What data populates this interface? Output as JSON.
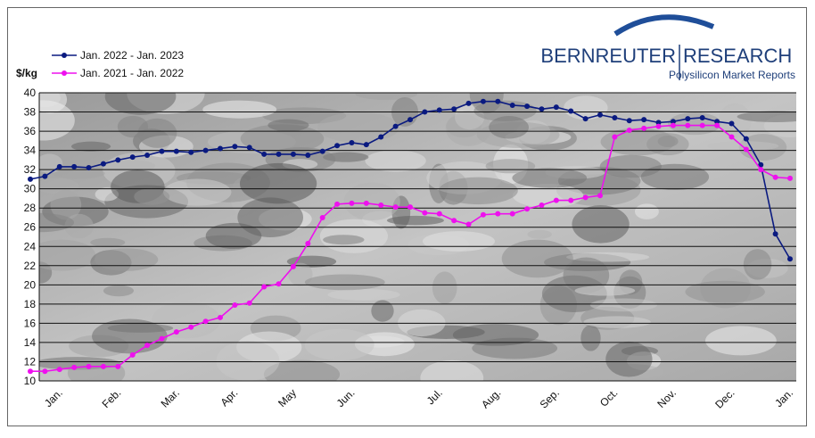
{
  "chart_data": {
    "type": "line",
    "y_label": "$/kg",
    "branding": {
      "name_left": "BERNREUTER",
      "name_right": "RESEARCH",
      "tagline": "Polysilicon Market Reports"
    },
    "categories": [
      null,
      null,
      "Jan.",
      null,
      null,
      null,
      "Feb.",
      null,
      null,
      null,
      "Mar.",
      null,
      null,
      null,
      "Apr.",
      null,
      null,
      null,
      "May",
      null,
      null,
      null,
      "Jun.",
      null,
      null,
      null,
      null,
      null,
      "Jul.",
      null,
      null,
      null,
      "Aug.",
      null,
      null,
      null,
      "Sep.",
      null,
      null,
      null,
      "Oct.",
      null,
      null,
      null,
      "Nov.",
      null,
      null,
      null,
      "Dec.",
      null,
      null,
      null,
      "Jan."
    ],
    "series": [
      {
        "name": "Jan. 2022 - Jan. 2023",
        "color": "#0a1a80",
        "values": [
          31.0,
          31.3,
          32.3,
          32.3,
          32.2,
          32.6,
          33.0,
          33.3,
          33.5,
          33.9,
          33.9,
          33.8,
          34.0,
          34.2,
          34.4,
          34.3,
          33.6,
          33.6,
          33.6,
          33.5,
          33.9,
          34.5,
          34.8,
          34.6,
          35.4,
          36.5,
          37.2,
          38.0,
          38.2,
          38.3,
          38.9,
          39.1,
          39.1,
          38.7,
          38.6,
          38.3,
          38.5,
          38.1,
          37.3,
          37.7,
          37.4,
          37.1,
          37.2,
          36.9,
          37.0,
          37.3,
          37.4,
          37.0,
          36.8,
          35.2,
          32.5,
          25.3,
          22.7
        ]
      },
      {
        "name": "Jan. 2021 - Jan. 2022",
        "color": "#ee10ee",
        "values": [
          11.0,
          11.0,
          11.2,
          11.4,
          11.5,
          11.5,
          11.5,
          12.7,
          13.7,
          14.4,
          15.1,
          15.6,
          16.2,
          16.6,
          17.9,
          18.1,
          19.8,
          20.1,
          21.9,
          24.3,
          27.0,
          28.4,
          28.5,
          28.5,
          28.3,
          28.1,
          28.1,
          27.5,
          27.4,
          26.7,
          26.3,
          27.3,
          27.4,
          27.4,
          27.9,
          28.3,
          28.8,
          28.8,
          29.1,
          29.3,
          35.4,
          36.1,
          36.3,
          36.5,
          36.6,
          36.6,
          36.6,
          36.6,
          35.4,
          34.1,
          32.0,
          31.2,
          31.1
        ]
      }
    ],
    "ylim": [
      10,
      40
    ],
    "yticks": [
      10,
      12,
      14,
      16,
      18,
      20,
      22,
      24,
      26,
      28,
      30,
      32,
      34,
      36,
      38,
      40
    ],
    "grid": true,
    "legend": "top-left"
  }
}
